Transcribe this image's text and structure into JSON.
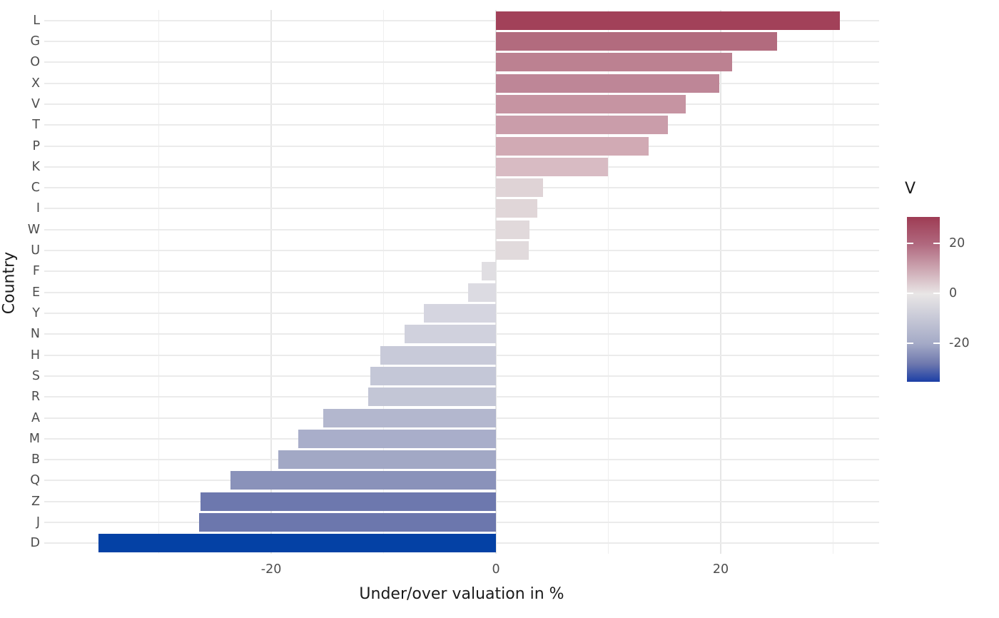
{
  "chart_data": {
    "type": "bar",
    "orientation": "horizontal",
    "title": "",
    "xlabel": "Under/over valuation in %",
    "ylabel": "Country",
    "categories": [
      "L",
      "G",
      "O",
      "X",
      "V",
      "T",
      "P",
      "K",
      "C",
      "I",
      "W",
      "U",
      "F",
      "E",
      "Y",
      "N",
      "H",
      "S",
      "R",
      "A",
      "M",
      "B",
      "Q",
      "Z",
      "J",
      "D"
    ],
    "values": [
      30.6,
      25.0,
      21.0,
      19.9,
      16.9,
      15.3,
      13.6,
      10.0,
      4.2,
      3.7,
      3.0,
      2.9,
      -1.3,
      -2.5,
      -6.4,
      -8.1,
      -10.3,
      -11.2,
      -11.4,
      -15.4,
      -17.6,
      -19.4,
      -23.6,
      -26.3,
      -26.4,
      -35.4
    ],
    "bar_colors": [
      "#A24159",
      "#B26B7E",
      "#BC8191",
      "#BE8697",
      "#C694A2",
      "#CA9DAA",
      "#D1AAB4",
      "#D8BBC3",
      "#DFD3D6",
      "#E0D6D8",
      "#E1D9DB",
      "#E1DADC",
      "#E0DEE2",
      "#DCDBE2",
      "#D5D5E0",
      "#D0D1DD",
      "#C8CAD9",
      "#C4C7D7",
      "#C3C6D6",
      "#B3B7CE",
      "#A9AECA",
      "#A2A8C5",
      "#8A92BA",
      "#6D78AE",
      "#6C77AD",
      "#0441A5"
    ],
    "xlim": [
      -40.2,
      34.1
    ],
    "x_ticks": [
      {
        "value": -20,
        "label": "-20"
      },
      {
        "value": 0,
        "label": "0"
      },
      {
        "value": 20,
        "label": "20"
      }
    ],
    "x_minor_ticks": [
      -30,
      -10,
      10,
      30
    ],
    "grid": true,
    "legend": {
      "title": "V",
      "position": "right",
      "range": [
        -35.4,
        30.6
      ],
      "ticks": [
        {
          "value": 20,
          "label": "20"
        },
        {
          "value": 0,
          "label": "0"
        },
        {
          "value": -20,
          "label": "-20"
        }
      ],
      "gradient_stops": [
        {
          "pos": 0,
          "color": "#9E3C54"
        },
        {
          "pos": 16.4,
          "color": "#B0687E"
        },
        {
          "pos": 46.8,
          "color": "#E9E6E6"
        },
        {
          "pos": 77.1,
          "color": "#A3A9C6"
        },
        {
          "pos": 89.0,
          "color": "#6F79AE"
        },
        {
          "pos": 100,
          "color": "#1C3FA6"
        }
      ]
    },
    "colors": {
      "tick_label": "#4d4d4d",
      "axis_title": "#1a1a1a",
      "gridline": "#ebebeb",
      "background": "#ffffff"
    }
  }
}
